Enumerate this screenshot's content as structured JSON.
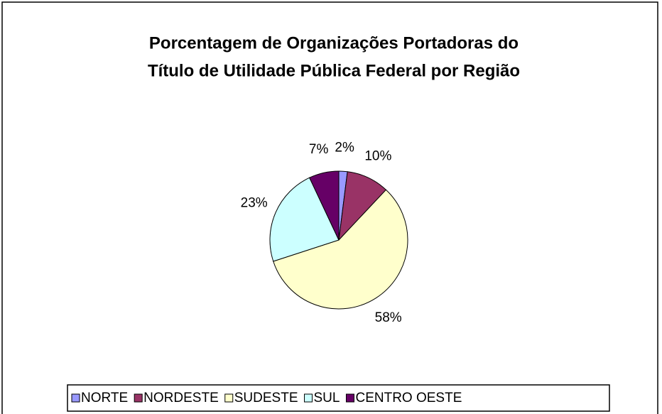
{
  "chart_data": {
    "type": "pie",
    "title": [
      "Porcentagem de Organizações Portadoras do",
      "Título de Utilidade Pública Federal por Região"
    ],
    "categories": [
      "NORTE",
      "NORDESTE",
      "SUDESTE",
      "SUL",
      "CENTRO OESTE"
    ],
    "values": [
      2,
      10,
      58,
      23,
      7
    ],
    "value_labels": [
      "2%",
      "10%",
      "58%",
      "23%",
      "7%"
    ],
    "colors": [
      "#9999ff",
      "#993366",
      "#ffffcc",
      "#ccffff",
      "#660066"
    ],
    "legend": "bottom"
  }
}
